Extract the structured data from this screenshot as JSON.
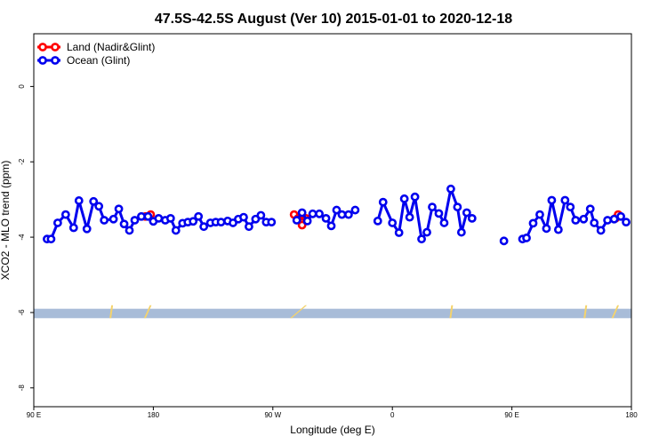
{
  "chart_data": {
    "type": "line",
    "title": "47.5S-42.5S August (Ver 10)   2015-01-01 to 2020-12-18",
    "xlabel": "Longitude (deg E)",
    "ylabel": "XCO2 - MLO trend (ppm)",
    "xlim": [
      90,
      540
    ],
    "ylim": [
      -8.5,
      1.4
    ],
    "x_ticks": [
      {
        "value": 90,
        "label": "90 E"
      },
      {
        "value": 180,
        "label": "180"
      },
      {
        "value": 270,
        "label": "90 W"
      },
      {
        "value": 360,
        "label": "0"
      },
      {
        "value": 450,
        "label": "90 E"
      },
      {
        "value": 540,
        "label": "180"
      }
    ],
    "y_ticks": [
      {
        "value": 0,
        "label": "0"
      },
      {
        "value": -2,
        "label": "-2"
      },
      {
        "value": -4,
        "label": "-4"
      },
      {
        "value": -6,
        "label": "-6"
      },
      {
        "value": -8,
        "label": "-8"
      }
    ],
    "legend_position": "top-left",
    "band": {
      "y_min": -6.15,
      "y_max": -5.9,
      "color": "#a8bcd8"
    },
    "land_patches_color": "#f5d36b",
    "land_patches": [
      {
        "x_min": 147,
        "x_max": 149
      },
      {
        "x_min": 173,
        "x_max": 178
      },
      {
        "x_min": 283,
        "x_max": 295
      },
      {
        "x_min": 403,
        "x_max": 405
      },
      {
        "x_min": 504,
        "x_max": 506
      },
      {
        "x_min": 525,
        "x_max": 530
      }
    ],
    "series": [
      {
        "name": "Land (Nadir&Glint)",
        "color": "#ff0000",
        "segments": [
          [
            [
              174,
              -3.45
            ],
            [
              178,
              -3.4
            ]
          ],
          [
            [
              286,
              -3.4
            ],
            [
              289,
              -3.5
            ],
            [
              292,
              -3.68
            ],
            [
              295,
              -3.5
            ]
          ],
          [
            [
              528,
              -3.5
            ],
            [
              530,
              -3.4
            ]
          ]
        ]
      },
      {
        "name": "Ocean (Glint)",
        "color": "#0000ee",
        "segments": [
          [
            [
              100,
              -4.05
            ],
            [
              103,
              -4.05
            ],
            [
              108,
              -3.62
            ],
            [
              114,
              -3.4
            ],
            [
              120,
              -3.75
            ],
            [
              124,
              -3.03
            ],
            [
              130,
              -3.78
            ],
            [
              135,
              -3.05
            ],
            [
              139,
              -3.18
            ],
            [
              143,
              -3.55
            ],
            [
              150,
              -3.52
            ],
            [
              154,
              -3.25
            ],
            [
              158,
              -3.65
            ],
            [
              162,
              -3.82
            ],
            [
              166,
              -3.55
            ],
            [
              171,
              -3.45
            ],
            [
              176,
              -3.45
            ],
            [
              180,
              -3.58
            ],
            [
              184,
              -3.5
            ],
            [
              189,
              -3.55
            ],
            [
              193,
              -3.5
            ],
            [
              197,
              -3.82
            ],
            [
              202,
              -3.63
            ],
            [
              206,
              -3.6
            ],
            [
              210,
              -3.58
            ],
            [
              214,
              -3.45
            ],
            [
              218,
              -3.72
            ],
            [
              223,
              -3.62
            ],
            [
              227,
              -3.6
            ],
            [
              231,
              -3.6
            ],
            [
              236,
              -3.57
            ],
            [
              240,
              -3.62
            ],
            [
              244,
              -3.52
            ],
            [
              248,
              -3.47
            ],
            [
              252,
              -3.72
            ],
            [
              257,
              -3.52
            ],
            [
              261,
              -3.42
            ],
            [
              265,
              -3.6
            ],
            [
              269,
              -3.6
            ]
          ],
          [
            [
              288,
              -3.55
            ],
            [
              292,
              -3.35
            ],
            [
              296,
              -3.57
            ],
            [
              300,
              -3.38
            ],
            [
              305,
              -3.38
            ],
            [
              310,
              -3.5
            ],
            [
              314,
              -3.7
            ],
            [
              318,
              -3.28
            ],
            [
              322,
              -3.4
            ],
            [
              327,
              -3.4
            ],
            [
              332,
              -3.28
            ]
          ],
          [
            [
              349,
              -3.57
            ],
            [
              353,
              -3.07
            ],
            [
              360,
              -3.62
            ],
            [
              365,
              -3.88
            ],
            [
              369,
              -2.98
            ],
            [
              373,
              -3.47
            ],
            [
              377,
              -2.93
            ],
            [
              382,
              -4.05
            ],
            [
              386,
              -3.87
            ],
            [
              390,
              -3.2
            ],
            [
              395,
              -3.37
            ],
            [
              399,
              -3.62
            ],
            [
              404,
              -2.72
            ],
            [
              409,
              -3.2
            ],
            [
              412,
              -3.87
            ],
            [
              416,
              -3.35
            ],
            [
              420,
              -3.5
            ]
          ],
          [
            [
              444,
              -4.1
            ]
          ],
          [
            [
              458,
              -4.05
            ],
            [
              461,
              -4.02
            ],
            [
              466,
              -3.63
            ],
            [
              471,
              -3.4
            ],
            [
              476,
              -3.77
            ],
            [
              480,
              -3.02
            ],
            [
              485,
              -3.8
            ],
            [
              490,
              -3.02
            ],
            [
              494,
              -3.2
            ],
            [
              498,
              -3.55
            ],
            [
              504,
              -3.52
            ],
            [
              509,
              -3.25
            ],
            [
              512,
              -3.62
            ],
            [
              517,
              -3.82
            ],
            [
              522,
              -3.55
            ],
            [
              527,
              -3.52
            ],
            [
              532,
              -3.45
            ],
            [
              536,
              -3.6
            ]
          ]
        ]
      }
    ]
  }
}
